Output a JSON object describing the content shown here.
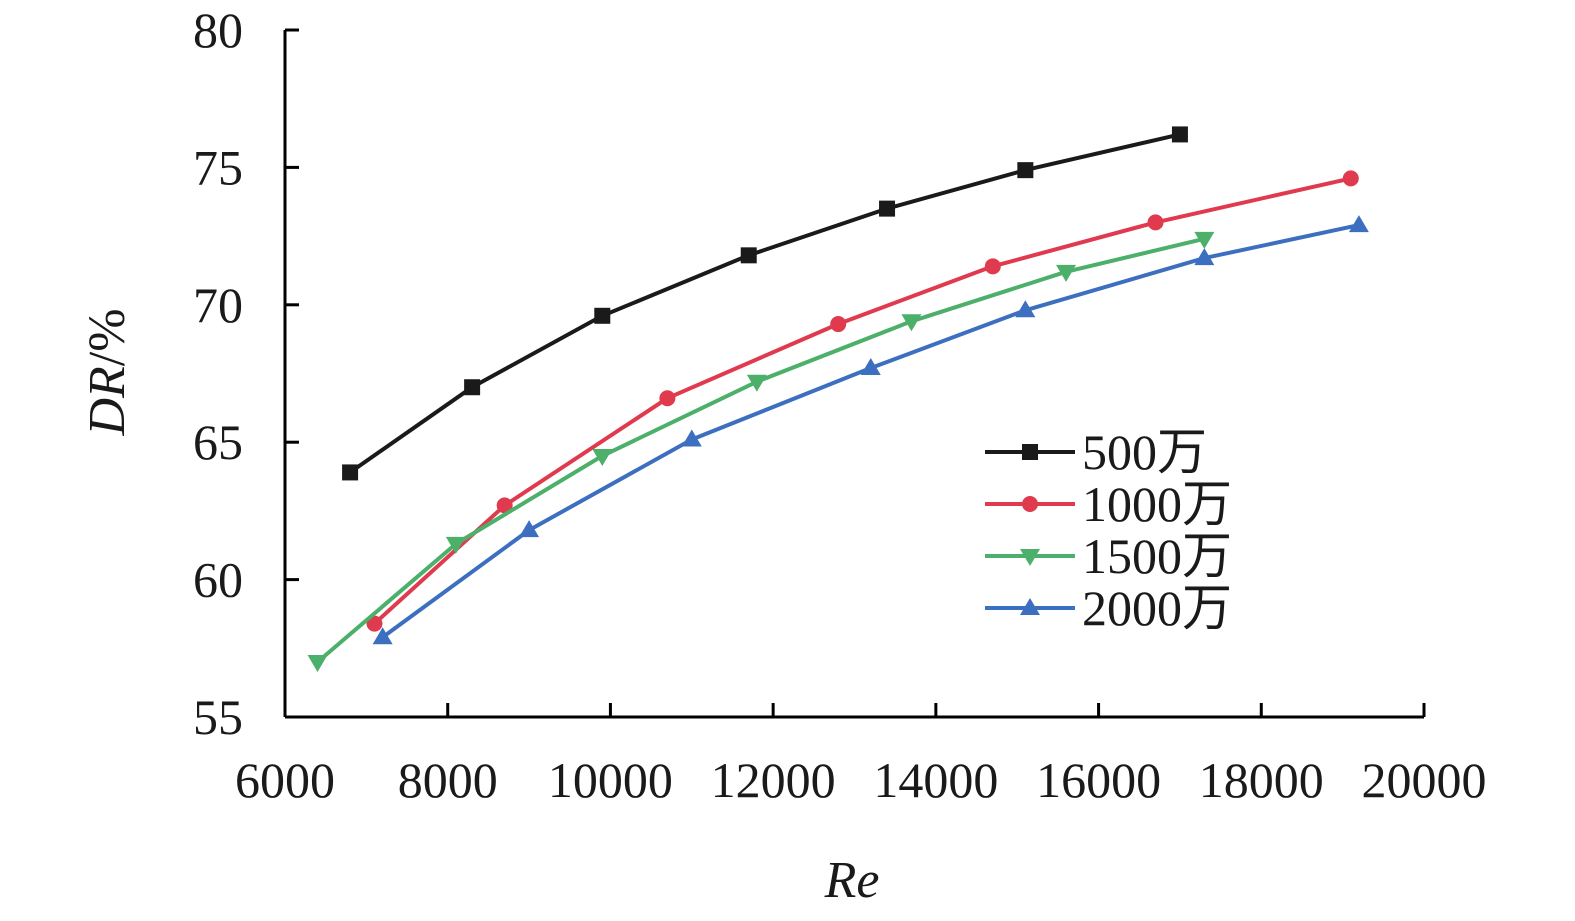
{
  "chart_data": {
    "type": "line",
    "xlabel": "Re",
    "ylabel": "DR/%",
    "ylabel_parts": {
      "italic": "DR",
      "unit": "/%"
    },
    "xlim": [
      6000,
      20000
    ],
    "ylim": [
      55,
      80
    ],
    "xticks": [
      6000,
      8000,
      10000,
      12000,
      14000,
      16000,
      18000,
      20000
    ],
    "yticks": [
      55,
      60,
      65,
      70,
      75,
      80
    ],
    "grid": false,
    "legend_position": "center-right",
    "series": [
      {
        "name": "500万",
        "color": "#1a1a1a",
        "marker": "square",
        "x": [
          6800,
          8300,
          9900,
          11700,
          13400,
          15100,
          17000
        ],
        "y": [
          63.9,
          67.0,
          69.6,
          71.8,
          73.5,
          74.9,
          76.2
        ]
      },
      {
        "name": "1000万",
        "color": "#e03a4e",
        "marker": "circle",
        "x": [
          7100,
          8700,
          10700,
          12800,
          14700,
          16700,
          19100
        ],
        "y": [
          58.4,
          62.7,
          66.6,
          69.3,
          71.4,
          73.0,
          74.6
        ]
      },
      {
        "name": "1500万",
        "color": "#4caf6a",
        "marker": "triangle-down",
        "x": [
          6400,
          8100,
          9900,
          11800,
          13700,
          15600,
          17300
        ],
        "y": [
          57.0,
          61.3,
          64.5,
          67.2,
          69.4,
          71.2,
          72.4
        ]
      },
      {
        "name": "2000万",
        "color": "#3d6fc0",
        "marker": "triangle-up",
        "x": [
          7200,
          9000,
          11000,
          13200,
          15100,
          17300,
          19200
        ],
        "y": [
          57.9,
          61.8,
          65.1,
          67.7,
          69.8,
          71.7,
          72.9
        ]
      }
    ]
  }
}
